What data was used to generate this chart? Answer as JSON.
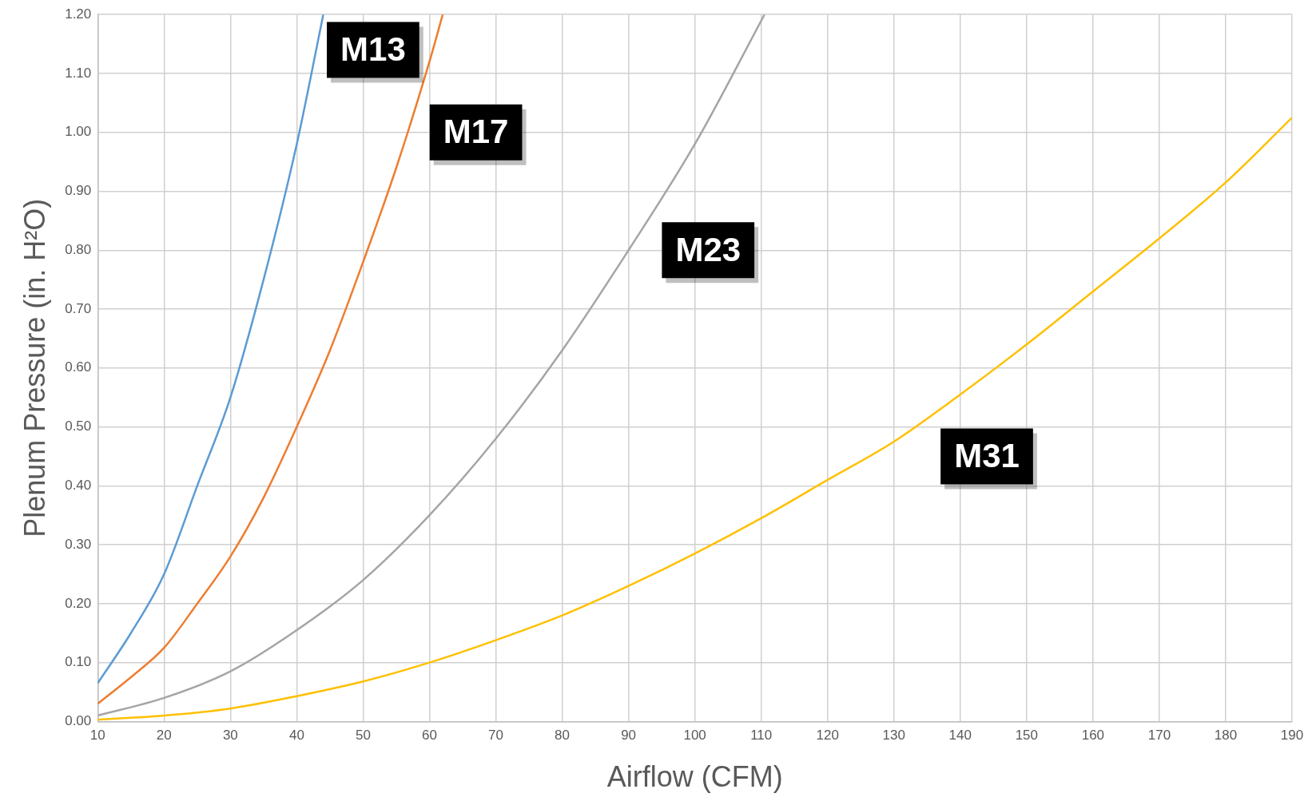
{
  "chart_data": {
    "type": "line",
    "xlabel": "Airflow (CFM)",
    "ylabel": "Plenum Pressure (in. H²O)",
    "xlim": [
      10,
      190
    ],
    "ylim": [
      0,
      1.2
    ],
    "xticks": [
      10,
      20,
      30,
      40,
      50,
      60,
      70,
      80,
      90,
      100,
      110,
      120,
      130,
      140,
      150,
      160,
      170,
      180,
      190
    ],
    "yticks": [
      {
        "value": 0,
        "label": "0.00"
      },
      {
        "value": 0.1,
        "label": "0.10"
      },
      {
        "value": 0.2,
        "label": "0.20"
      },
      {
        "value": 0.3,
        "label": "0.30"
      },
      {
        "value": 0.4,
        "label": "0.40"
      },
      {
        "value": 0.5,
        "label": "0.50"
      },
      {
        "value": 0.6,
        "label": "0.60"
      },
      {
        "value": 0.7,
        "label": "0.70"
      },
      {
        "value": 0.8,
        "label": "0.80"
      },
      {
        "value": 0.9,
        "label": "0.90"
      },
      {
        "value": 1.0,
        "label": "1.00"
      },
      {
        "value": 1.1,
        "label": "1.10"
      },
      {
        "value": 1.2,
        "label": "1.20"
      }
    ],
    "grid": true,
    "legend": false,
    "marker": "none",
    "line_style": "solid",
    "series": [
      {
        "name": "M13",
        "color": "#5b9bd5",
        "x": [
          10,
          15,
          20,
          25,
          30,
          35,
          40,
          44
        ],
        "values": [
          0.065,
          0.15,
          0.25,
          0.4,
          0.55,
          0.75,
          0.98,
          1.2
        ]
      },
      {
        "name": "M17",
        "color": "#ed7d31",
        "x": [
          10,
          15,
          20,
          25,
          30,
          35,
          40,
          45,
          50,
          55,
          60,
          62
        ],
        "values": [
          0.03,
          0.075,
          0.125,
          0.2,
          0.28,
          0.38,
          0.5,
          0.63,
          0.78,
          0.94,
          1.12,
          1.2
        ]
      },
      {
        "name": "M23",
        "color": "#a5a5a5",
        "x": [
          10,
          20,
          30,
          40,
          50,
          60,
          70,
          80,
          90,
          100,
          110.5
        ],
        "values": [
          0.01,
          0.04,
          0.085,
          0.155,
          0.24,
          0.35,
          0.48,
          0.63,
          0.8,
          0.98,
          1.2
        ]
      },
      {
        "name": "M31",
        "color": "#ffc000",
        "x": [
          10,
          20,
          30,
          40,
          50,
          60,
          70,
          80,
          90,
          100,
          110,
          120,
          130,
          140,
          150,
          160,
          170,
          180,
          190
        ],
        "values": [
          0.003,
          0.01,
          0.022,
          0.043,
          0.068,
          0.1,
          0.138,
          0.18,
          0.23,
          0.285,
          0.345,
          0.41,
          0.475,
          0.555,
          0.64,
          0.73,
          0.82,
          0.915,
          1.025
        ]
      }
    ]
  }
}
